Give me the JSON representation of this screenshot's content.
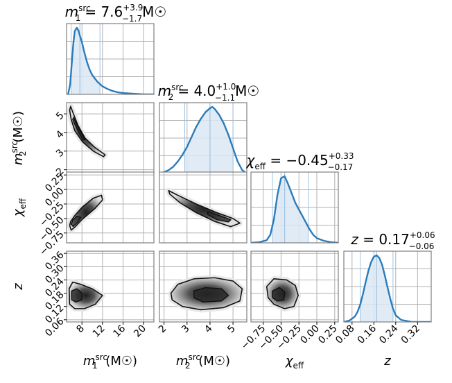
{
  "chart_data": {
    "type": "corner",
    "parameters": [
      {
        "key": "m1",
        "title": "m1src = 7.6 +3.9 −1.7 M☉",
        "title_parts": {
          "sym": "m",
          "sub": "1",
          "sup": "src",
          "median": "7.6",
          "plus": "+3.9",
          "minus": "−1.7",
          "unit": "M☉"
        },
        "axis_label_parts": {
          "sym": "m",
          "sub": "1",
          "sup": "src",
          "unit": "(M☉)"
        },
        "range": [
          5,
          22
        ],
        "ticks": [
          8,
          12,
          16,
          20
        ],
        "tick_labels": [
          "8",
          "12",
          "16",
          "20"
        ],
        "median": 7.6,
        "lower": 5.9,
        "upper": 11.5
      },
      {
        "key": "m2",
        "title": "m2src = 4.0 +1.0 −1.1 M☉",
        "title_parts": {
          "sym": "m",
          "sub": "2",
          "sup": "src",
          "median": "4.0",
          "plus": "+1.0",
          "minus": "−1.1",
          "unit": "M☉"
        },
        "axis_label_parts": {
          "sym": "m",
          "sub": "2",
          "sup": "src",
          "unit": "(M☉)"
        },
        "range": [
          1.8,
          5.6
        ],
        "ticks": [
          2,
          3,
          4,
          5
        ],
        "tick_labels": [
          "2",
          "3",
          "4",
          "5"
        ],
        "median": 4.0,
        "lower": 2.9,
        "upper": 5.0
      },
      {
        "key": "chi",
        "title": "χeff = −0.45 +0.33 −0.17",
        "title_parts": {
          "sym": "χ",
          "sub": "eff",
          "sup": "",
          "median": "−0.45",
          "plus": "+0.33",
          "minus": "−0.17",
          "unit": ""
        },
        "axis_label_parts": {
          "sym": "χ",
          "sub": "eff",
          "sup": "",
          "unit": ""
        },
        "range": [
          -0.92,
          0.3
        ],
        "ticks": [
          -0.75,
          -0.5,
          -0.25,
          0.0,
          0.25
        ],
        "tick_labels": [
          "−0.75",
          "−0.50",
          "−0.25",
          "0.00",
          "0.25"
        ],
        "median": -0.45,
        "lower": -0.62,
        "upper": -0.12
      },
      {
        "key": "z",
        "title": "z = 0.17 +0.06 −0.06",
        "title_parts": {
          "sym": "z",
          "sub": "",
          "sup": "",
          "median": "0.17",
          "plus": "+0.06",
          "minus": "−0.06",
          "unit": ""
        },
        "axis_label_parts": {
          "sym": "z",
          "sub": "",
          "sup": "",
          "unit": ""
        },
        "range": [
          0.05,
          0.37
        ],
        "ticks": [
          0.08,
          0.16,
          0.24,
          0.32
        ],
        "tick_labels": [
          "0.08",
          "0.16",
          "0.24",
          "0.32"
        ],
        "median": 0.17,
        "lower": 0.11,
        "upper": 0.23
      }
    ],
    "row_ticks": {
      "m2": {
        "ticks": [
          2,
          3,
          4,
          5
        ],
        "labels": [
          "2",
          "3",
          "4",
          "5"
        ]
      },
      "chi": {
        "ticks": [
          -0.75,
          -0.5,
          -0.25,
          0.0,
          0.25
        ],
        "labels": [
          "−0.75",
          "−0.50",
          "−0.25",
          "0.00",
          "0.25"
        ]
      },
      "z": {
        "ticks": [
          0.06,
          0.12,
          0.18,
          0.24,
          0.3,
          0.36
        ],
        "labels": [
          "0.06",
          "0.12",
          "0.18",
          "0.24",
          "0.30",
          "0.36"
        ]
      }
    },
    "marginals": {
      "m1": {
        "x": [
          5.3,
          5.7,
          6.0,
          6.3,
          6.6,
          7.0,
          7.3,
          7.6,
          8.0,
          8.5,
          9.0,
          9.5,
          10,
          11,
          12,
          13,
          14,
          15,
          16,
          18,
          20,
          22
        ],
        "y": [
          0.0,
          0.15,
          0.45,
          0.75,
          0.95,
          1.0,
          0.96,
          0.88,
          0.78,
          0.62,
          0.48,
          0.37,
          0.29,
          0.19,
          0.12,
          0.08,
          0.05,
          0.03,
          0.02,
          0.01,
          0.0,
          0.0
        ]
      },
      "m2": {
        "x": [
          1.8,
          2.0,
          2.2,
          2.4,
          2.6,
          2.8,
          3.0,
          3.2,
          3.4,
          3.6,
          3.8,
          4.0,
          4.1,
          4.2,
          4.4,
          4.6,
          4.8,
          5.0,
          5.2,
          5.4,
          5.6
        ],
        "y": [
          0.0,
          0.02,
          0.05,
          0.1,
          0.18,
          0.28,
          0.4,
          0.55,
          0.7,
          0.82,
          0.92,
          0.98,
          1.0,
          0.97,
          0.88,
          0.75,
          0.58,
          0.38,
          0.18,
          0.05,
          0.0
        ]
      },
      "chi": {
        "x": [
          -0.92,
          -0.8,
          -0.7,
          -0.65,
          -0.6,
          -0.55,
          -0.5,
          -0.45,
          -0.4,
          -0.35,
          -0.3,
          -0.25,
          -0.2,
          -0.15,
          -0.1,
          -0.05,
          0.0,
          0.1,
          0.2,
          0.3
        ],
        "y": [
          0.0,
          0.01,
          0.04,
          0.12,
          0.35,
          0.72,
          0.97,
          1.0,
          0.88,
          0.74,
          0.6,
          0.5,
          0.4,
          0.3,
          0.2,
          0.12,
          0.07,
          0.03,
          0.01,
          0.0
        ]
      },
      "z": {
        "x": [
          0.05,
          0.07,
          0.09,
          0.1,
          0.11,
          0.12,
          0.13,
          0.14,
          0.15,
          0.16,
          0.17,
          0.18,
          0.19,
          0.2,
          0.21,
          0.22,
          0.23,
          0.24,
          0.26,
          0.3,
          0.37
        ],
        "y": [
          0.0,
          0.02,
          0.08,
          0.15,
          0.26,
          0.42,
          0.6,
          0.77,
          0.9,
          0.98,
          1.0,
          0.96,
          0.86,
          0.7,
          0.52,
          0.35,
          0.2,
          0.1,
          0.03,
          0.0,
          0.0
        ]
      }
    },
    "joint_contours": [
      {
        "x_param": "m1",
        "y_param": "m2",
        "outer": [
          [
            5.8,
            5.4
          ],
          [
            6.2,
            5.1
          ],
          [
            7.2,
            4.4
          ],
          [
            8.6,
            3.7
          ],
          [
            10.5,
            3.2
          ],
          [
            12.5,
            2.8
          ],
          [
            12.2,
            2.7
          ],
          [
            10.2,
            3.0
          ],
          [
            8.1,
            3.5
          ],
          [
            6.6,
            4.1
          ],
          [
            5.9,
            4.7
          ],
          [
            5.6,
            5.2
          ]
        ],
        "inner": [
          [
            6.4,
            4.8
          ],
          [
            7.0,
            4.4
          ],
          [
            8.0,
            3.9
          ],
          [
            8.6,
            3.6
          ],
          [
            8.2,
            3.6
          ],
          [
            7.2,
            4.1
          ],
          [
            6.5,
            4.5
          ],
          [
            6.2,
            4.7
          ]
        ]
      },
      {
        "x_param": "m1",
        "y_param": "chi",
        "outer": [
          [
            5.6,
            -0.62
          ],
          [
            5.9,
            -0.7
          ],
          [
            6.6,
            -0.65
          ],
          [
            8.0,
            -0.52
          ],
          [
            10.5,
            -0.33
          ],
          [
            12.0,
            -0.18
          ],
          [
            11.8,
            -0.1
          ],
          [
            10.2,
            -0.15
          ],
          [
            8.1,
            -0.3
          ],
          [
            6.6,
            -0.45
          ],
          [
            5.8,
            -0.55
          ]
        ],
        "inner": [
          [
            5.9,
            -0.6
          ],
          [
            6.3,
            -0.64
          ],
          [
            7.2,
            -0.56
          ],
          [
            7.8,
            -0.48
          ],
          [
            7.0,
            -0.46
          ],
          [
            6.2,
            -0.53
          ]
        ]
      },
      {
        "x_param": "m2",
        "y_param": "chi",
        "outer": [
          [
            2.2,
            -0.02
          ],
          [
            2.6,
            -0.1
          ],
          [
            3.4,
            -0.25
          ],
          [
            4.3,
            -0.4
          ],
          [
            5.0,
            -0.5
          ],
          [
            5.3,
            -0.58
          ],
          [
            4.9,
            -0.64
          ],
          [
            4.2,
            -0.55
          ],
          [
            3.4,
            -0.4
          ],
          [
            2.7,
            -0.23
          ],
          [
            2.25,
            -0.08
          ]
        ],
        "inner": [
          [
            3.9,
            -0.38
          ],
          [
            4.4,
            -0.45
          ],
          [
            4.9,
            -0.52
          ],
          [
            4.8,
            -0.56
          ],
          [
            4.3,
            -0.52
          ],
          [
            3.9,
            -0.43
          ]
        ]
      },
      {
        "x_param": "m1",
        "y_param": "z",
        "outer": [
          [
            5.5,
            0.2
          ],
          [
            6.2,
            0.23
          ],
          [
            7.8,
            0.22
          ],
          [
            10.0,
            0.2
          ],
          [
            12.0,
            0.17
          ],
          [
            10.6,
            0.13
          ],
          [
            8.5,
            0.11
          ],
          [
            6.6,
            0.11
          ],
          [
            5.6,
            0.13
          ]
        ],
        "inner": [
          [
            6.0,
            0.19
          ],
          [
            7.0,
            0.2
          ],
          [
            8.0,
            0.18
          ],
          [
            8.0,
            0.15
          ],
          [
            6.8,
            0.14
          ],
          [
            6.0,
            0.15
          ]
        ]
      },
      {
        "x_param": "m2",
        "y_param": "z",
        "outer": [
          [
            2.3,
            0.18
          ],
          [
            2.6,
            0.22
          ],
          [
            3.3,
            0.245
          ],
          [
            4.2,
            0.25
          ],
          [
            5.0,
            0.235
          ],
          [
            5.4,
            0.2
          ],
          [
            5.3,
            0.145
          ],
          [
            4.6,
            0.115
          ],
          [
            3.6,
            0.105
          ],
          [
            2.8,
            0.12
          ],
          [
            2.35,
            0.15
          ]
        ],
        "inner": [
          [
            3.3,
            0.19
          ],
          [
            3.8,
            0.205
          ],
          [
            4.5,
            0.2
          ],
          [
            4.8,
            0.17
          ],
          [
            4.5,
            0.145
          ],
          [
            3.7,
            0.14
          ],
          [
            3.3,
            0.16
          ]
        ]
      },
      {
        "x_param": "chi",
        "y_param": "z",
        "outer": [
          [
            -0.7,
            0.21
          ],
          [
            -0.6,
            0.245
          ],
          [
            -0.42,
            0.24
          ],
          [
            -0.3,
            0.215
          ],
          [
            -0.26,
            0.17
          ],
          [
            -0.32,
            0.12
          ],
          [
            -0.45,
            0.11
          ],
          [
            -0.6,
            0.13
          ],
          [
            -0.68,
            0.16
          ]
        ],
        "inner": [
          [
            -0.62,
            0.19
          ],
          [
            -0.52,
            0.205
          ],
          [
            -0.45,
            0.185
          ],
          [
            -0.46,
            0.15
          ],
          [
            -0.55,
            0.145
          ],
          [
            -0.62,
            0.16
          ]
        ]
      }
    ]
  }
}
